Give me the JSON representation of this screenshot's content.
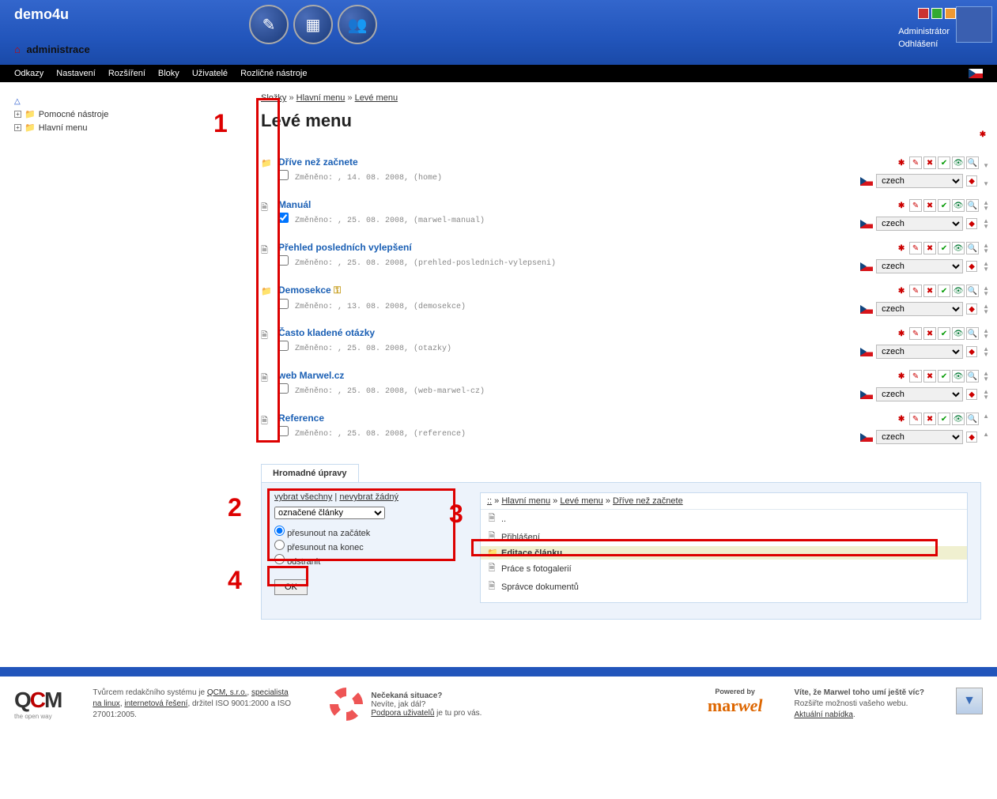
{
  "header": {
    "logo": "demo4u",
    "subtitle": "administrace",
    "colors": [
      "#cc3333",
      "#33aa33",
      "#ee9933",
      "#666666",
      "#88aadd"
    ],
    "user_role": "Administrátor",
    "logout": "Odhlášení"
  },
  "topnav": {
    "items": [
      "Odkazy",
      "Nastavení",
      "Rozšíření",
      "Bloky",
      "Uživatelé",
      "Rozličné nástroje"
    ]
  },
  "sidebar": {
    "items": [
      {
        "label": "Pomocné nástroje"
      },
      {
        "label": "Hlavní menu"
      }
    ]
  },
  "breadcrumb": {
    "parts": [
      "Složky",
      "Hlavní menu",
      "Levé menu"
    ]
  },
  "page_title": "Levé menu",
  "lang_option": "czech",
  "list": [
    {
      "icon": "folder",
      "title": "Dříve než začnete",
      "meta": "Změněno: , 14. 08. 2008, (home)",
      "checked": false,
      "key": false,
      "up": false,
      "down": true
    },
    {
      "icon": "doc",
      "title": "Manuál",
      "meta": "Změněno: , 25. 08. 2008, (marwel-manual)",
      "checked": true,
      "key": false,
      "up": true,
      "down": true
    },
    {
      "icon": "doc",
      "title": "Přehled posledních vylepšení",
      "meta": "Změněno: , 25. 08. 2008, (prehled-poslednich-vylepseni)",
      "checked": false,
      "key": false,
      "up": true,
      "down": true
    },
    {
      "icon": "folder",
      "title": "Demosekce",
      "meta": "Změněno: , 13. 08. 2008, (demosekce)",
      "checked": false,
      "key": true,
      "up": true,
      "down": true
    },
    {
      "icon": "doc",
      "title": "Často kladené otázky",
      "meta": "Změněno: , 25. 08. 2008, (otazky)",
      "checked": false,
      "key": false,
      "up": true,
      "down": true
    },
    {
      "icon": "doc",
      "title": "web Marwel.cz",
      "meta": "Změněno: , 25. 08. 2008, (web-marwel-cz)",
      "checked": false,
      "key": false,
      "up": true,
      "down": true
    },
    {
      "icon": "doc",
      "title": "Reference",
      "meta": "Změněno: , 25. 08. 2008, (reference)",
      "checked": false,
      "key": false,
      "up": true,
      "down": false
    }
  ],
  "bulk": {
    "tab": "Hromadné úpravy",
    "select_all": "vybrat všechny",
    "select_none": "nevybrat žádný",
    "dropdown": "označené články",
    "radio1": "přesunout na začátek",
    "radio2": "přesunout na konec",
    "radio3": "odstranit",
    "ok": "OK",
    "bc_prefix": "::",
    "bc": [
      "Hlavní menu",
      "Levé menu",
      "Dříve než začnete"
    ],
    "files": [
      {
        "icon": "doc",
        "label": "..",
        "sel": false
      },
      {
        "icon": "doc",
        "label": "Přihlášení",
        "sel": false
      },
      {
        "icon": "folder",
        "label": "Editace článku",
        "sel": true
      },
      {
        "icon": "doc",
        "label": "Práce s fotogalerií",
        "sel": false
      },
      {
        "icon": "doc",
        "label": "Správce dokumentů",
        "sel": false
      }
    ]
  },
  "annotations": [
    "1",
    "2",
    "3",
    "4"
  ],
  "footer": {
    "qcm_tag": "the open way",
    "maker_text_pre": "Tvůrcem redakčního systému je ",
    "maker_links": [
      "QCM, s.r.o.",
      "specialista na linux",
      "internetová řešení"
    ],
    "maker_text_post": ", držitel ISO 9001:2000 a ISO 27001:2005.",
    "support_title": "Nečekaná situace?",
    "support_sub": "Nevíte, jak dál?",
    "support_link": "Podpora uživatelů",
    "support_post": " je tu pro vás.",
    "powered": "Powered by",
    "brand": "marwel",
    "more_title": "Víte, že Marwel toho umí ještě víc?",
    "more_sub": "Rozšiřte možnosti vašeho webu.",
    "more_link": "Aktuální nabídka"
  }
}
